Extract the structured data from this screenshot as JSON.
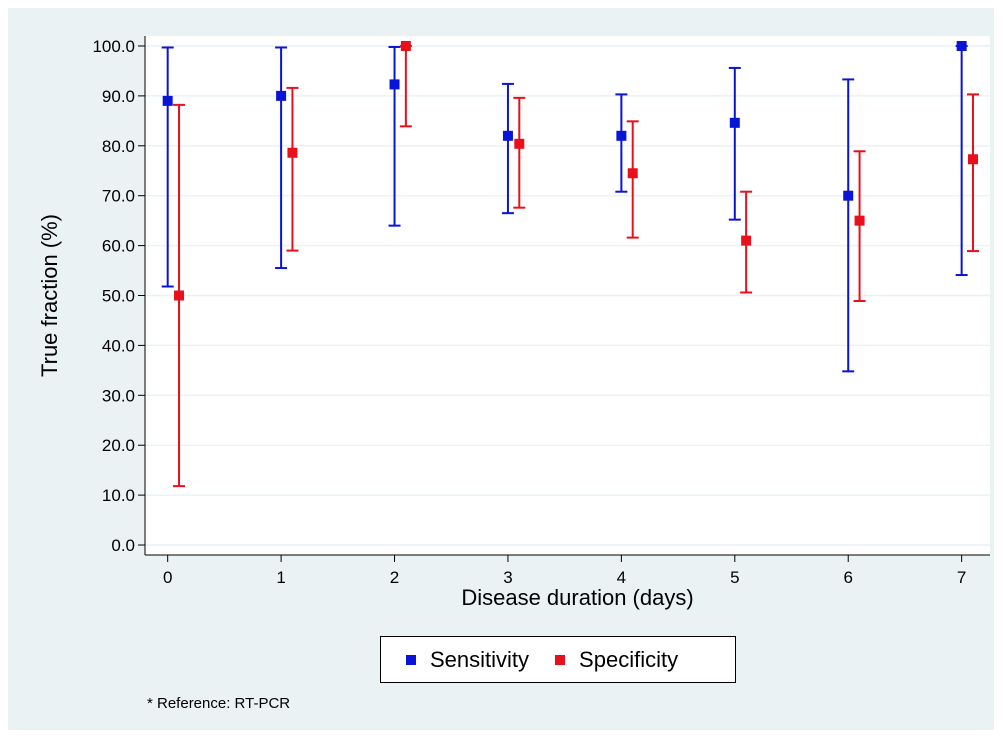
{
  "chart_data": {
    "type": "scatter",
    "xlabel": "Disease duration (days)",
    "ylabel": "True fraction (%)",
    "xlim": [
      -0.2,
      7.25
    ],
    "ylim": [
      -2,
      102
    ],
    "x_ticks": [
      "0",
      "1",
      "2",
      "3",
      "4",
      "5",
      "6",
      "7"
    ],
    "y_ticks": [
      "0.0",
      "10.0",
      "20.0",
      "30.0",
      "40.0",
      "50.0",
      "60.0",
      "70.0",
      "80.0",
      "90.0",
      "100.0"
    ],
    "grid": "horizontal",
    "legend_position": "bottom",
    "error_bars": true,
    "series": [
      {
        "name": "Sensitivity",
        "color": "#0a14d6",
        "x_offset": 0,
        "x": [
          0,
          1,
          2,
          3,
          4,
          5,
          6,
          7
        ],
        "values": [
          89.0,
          90.0,
          92.3,
          82.0,
          82.0,
          84.6,
          70.0,
          100.0
        ],
        "lower": [
          51.8,
          55.5,
          64.0,
          66.5,
          70.8,
          65.2,
          34.8,
          54.1
        ],
        "upper": [
          99.7,
          99.7,
          99.8,
          92.4,
          90.3,
          95.6,
          93.3,
          100.0
        ]
      },
      {
        "name": "Specificity",
        "color": "#e8101a",
        "x_offset": 0.1,
        "x": [
          0,
          1,
          2,
          3,
          4,
          5,
          6,
          7
        ],
        "values": [
          50.0,
          78.6,
          100.0,
          80.4,
          74.5,
          61.0,
          65.0,
          77.3
        ],
        "lower": [
          11.8,
          59.0,
          83.9,
          67.6,
          61.6,
          50.6,
          48.9,
          58.9
        ],
        "upper": [
          88.2,
          91.6,
          100.0,
          89.6,
          84.9,
          70.8,
          78.9,
          90.3
        ]
      }
    ]
  },
  "note": "* Reference: RT-PCR"
}
